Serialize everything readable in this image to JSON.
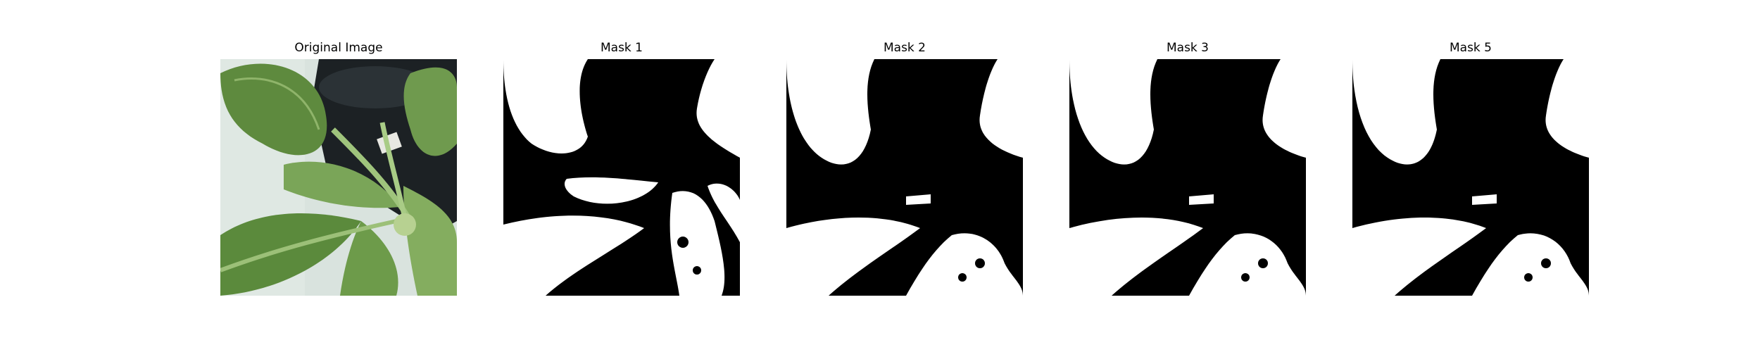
{
  "figure": {
    "panels": [
      {
        "title": "Original Image",
        "kind": "photo"
      },
      {
        "title": "Mask 1",
        "kind": "mask"
      },
      {
        "title": "Mask 2",
        "kind": "mask"
      },
      {
        "title": "Mask 3",
        "kind": "mask"
      },
      {
        "title": "Mask 5",
        "kind": "mask"
      }
    ],
    "colors": {
      "mask_foreground": "#ffffff",
      "mask_background": "#000000",
      "leaf_green": "#6f9a4e",
      "wall": "#d9e3de"
    }
  }
}
